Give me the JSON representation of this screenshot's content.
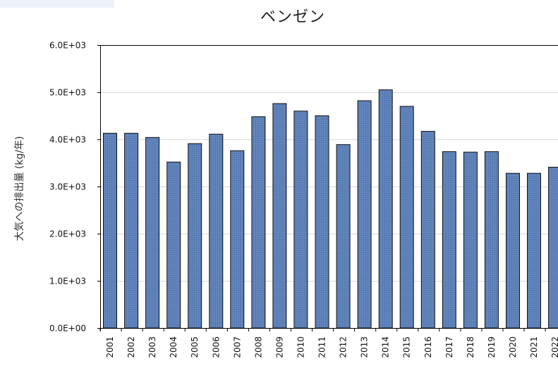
{
  "chart_data": {
    "type": "bar",
    "title": "ベンゼン",
    "xlabel": "",
    "ylabel": "大気への排出量 (kg/年)",
    "categories": [
      "2001",
      "2002",
      "2003",
      "2004",
      "2005",
      "2006",
      "2007",
      "2008",
      "2009",
      "2010",
      "2011",
      "2012",
      "2013",
      "2014",
      "2015",
      "2016",
      "2017",
      "2018",
      "2019",
      "2020",
      "2021",
      "2022"
    ],
    "values": [
      4130,
      4130,
      4040,
      3520,
      3910,
      4110,
      3760,
      4480,
      4760,
      4600,
      4500,
      3890,
      4820,
      5050,
      4700,
      4170,
      3740,
      3730,
      3740,
      3280,
      3280,
      3410
    ],
    "ylim": [
      0,
      6000
    ],
    "yticks": [
      0,
      1000,
      2000,
      3000,
      4000,
      5000,
      6000
    ],
    "ytick_labels": [
      "0.0E+00",
      "1.0E+03",
      "2.0E+03",
      "3.0E+03",
      "4.0E+03",
      "5.0E+03",
      "6.0E+03"
    ],
    "grid": true,
    "colors": {
      "bar_fill": "#5b7fb8",
      "bar_stroke": "#111111",
      "gridline": "#d9d9d9",
      "axis": "#000000"
    }
  }
}
